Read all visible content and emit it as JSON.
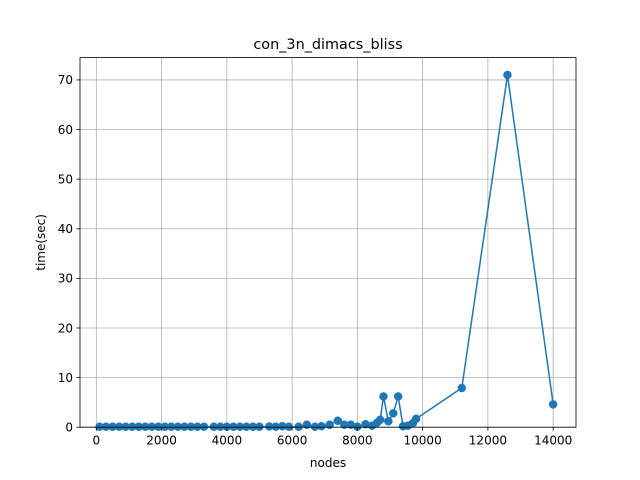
{
  "chart_data": {
    "type": "line",
    "title": "con_3n_dimacs_bliss",
    "xlabel": "nodes",
    "ylabel": "time(sec)",
    "xlim": [
      -500,
      14700
    ],
    "ylim": [
      0,
      74.5
    ],
    "xticks": [
      0,
      2000,
      4000,
      6000,
      8000,
      10000,
      12000,
      14000
    ],
    "yticks": [
      0,
      10,
      20,
      30,
      40,
      50,
      60,
      70
    ],
    "grid": true,
    "series": [
      {
        "color": "#1f77b4",
        "marker": "circle",
        "points": [
          [
            100,
            0.1
          ],
          [
            300,
            0.1
          ],
          [
            500,
            0.1
          ],
          [
            700,
            0.1
          ],
          [
            900,
            0.1
          ],
          [
            1100,
            0.1
          ],
          [
            1300,
            0.1
          ],
          [
            1500,
            0.1
          ],
          [
            1700,
            0.1
          ],
          [
            1900,
            0.1
          ],
          [
            2100,
            0.1
          ],
          [
            2300,
            0.1
          ],
          [
            2500,
            0.1
          ],
          [
            2700,
            0.1
          ],
          [
            2900,
            0.1
          ],
          [
            3100,
            0.1
          ],
          [
            3300,
            0.1
          ],
          [
            3600,
            0.1
          ],
          [
            3800,
            0.1
          ],
          [
            4000,
            0.1
          ],
          [
            4200,
            0.1
          ],
          [
            4400,
            0.1
          ],
          [
            4600,
            0.1
          ],
          [
            4800,
            0.1
          ],
          [
            5000,
            0.1
          ],
          [
            5300,
            0.15
          ],
          [
            5500,
            0.1
          ],
          [
            5700,
            0.2
          ],
          [
            5900,
            0.1
          ],
          [
            6200,
            0.1
          ],
          [
            6450,
            0.5
          ],
          [
            6700,
            0.1
          ],
          [
            6900,
            0.2
          ],
          [
            7150,
            0.5
          ],
          [
            7400,
            1.3
          ],
          [
            7600,
            0.5
          ],
          [
            7800,
            0.5
          ],
          [
            8000,
            0.1
          ],
          [
            8250,
            0.6
          ],
          [
            8450,
            0.3
          ],
          [
            8600,
            0.9
          ],
          [
            8700,
            1.5
          ],
          [
            8800,
            6.2
          ],
          [
            8950,
            1.2
          ],
          [
            9100,
            2.8
          ],
          [
            9250,
            6.2
          ],
          [
            9400,
            0.2
          ],
          [
            9550,
            0.3
          ],
          [
            9700,
            0.8
          ],
          [
            9800,
            1.7
          ],
          [
            11200,
            7.9
          ],
          [
            12600,
            71
          ],
          [
            14000,
            4.6
          ]
        ]
      }
    ]
  }
}
